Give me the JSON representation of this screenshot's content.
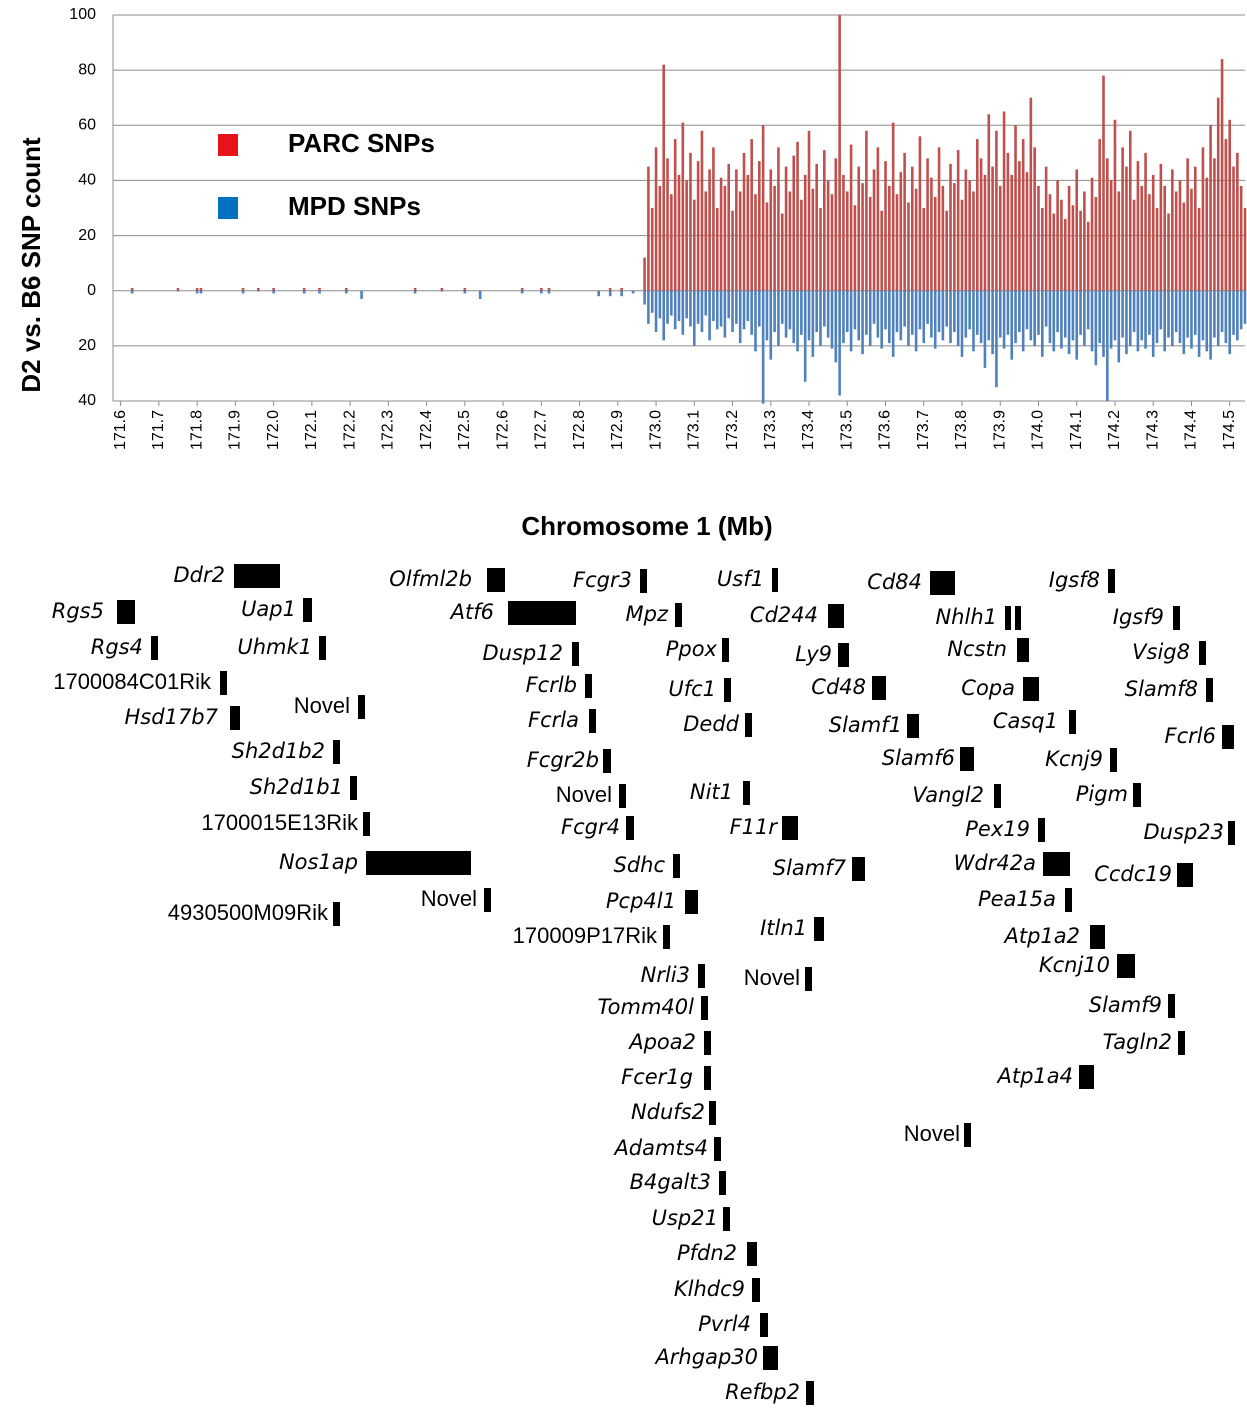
{
  "chart_data": {
    "type": "bar",
    "y_label": "D2 vs. B6 SNP count",
    "x_label": "Chromosome 1 (Mb)",
    "xlim": [
      171.58,
      174.54
    ],
    "xticks": [
      171.6,
      171.7,
      171.8,
      171.9,
      {
        "value": 172,
        "label": "172.0"
      },
      172.1,
      172.2,
      172.3,
      172.4,
      172.5,
      172.6,
      172.7,
      172.8,
      172.9,
      {
        "value": 173,
        "label": "173.0"
      },
      173.1,
      173.2,
      173.3,
      173.4,
      173.5,
      173.6,
      173.7,
      173.8,
      173.9,
      {
        "value": 174,
        "label": "174.0"
      },
      174.1,
      174.2,
      174.3,
      174.4,
      174.5
    ],
    "ylim": [
      -40,
      100
    ],
    "yticks": [
      {
        "value": -40,
        "label": "40"
      },
      {
        "value": -20,
        "label": "20"
      },
      0,
      20,
      40,
      60,
      80,
      100
    ],
    "grid": true,
    "legend": "upper left",
    "x": [
      171.63,
      171.75,
      171.8,
      171.81,
      171.92,
      171.96,
      172.0,
      172.08,
      172.12,
      172.19,
      172.23,
      172.37,
      172.44,
      172.5,
      172.54,
      172.65,
      172.7,
      172.72,
      172.85,
      172.88,
      172.91,
      172.94,
      172.97,
      172.98,
      172.99,
      173.0,
      173.01,
      173.02,
      173.03,
      173.04,
      173.05,
      173.06,
      173.07,
      173.08,
      173.09,
      173.1,
      173.11,
      173.12,
      173.13,
      173.14,
      173.15,
      173.16,
      173.17,
      173.18,
      173.19,
      173.2,
      173.21,
      173.22,
      173.23,
      173.24,
      173.25,
      173.26,
      173.27,
      173.28,
      173.29,
      173.3,
      173.31,
      173.32,
      173.33,
      173.34,
      173.35,
      173.36,
      173.37,
      173.38,
      173.39,
      173.4,
      173.41,
      173.42,
      173.43,
      173.44,
      173.45,
      173.46,
      173.47,
      173.48,
      173.49,
      173.5,
      173.51,
      173.52,
      173.53,
      173.54,
      173.55,
      173.56,
      173.57,
      173.58,
      173.59,
      173.6,
      173.61,
      173.62,
      173.63,
      173.64,
      173.65,
      173.66,
      173.67,
      173.68,
      173.69,
      173.7,
      173.71,
      173.72,
      173.73,
      173.74,
      173.75,
      173.76,
      173.77,
      173.78,
      173.79,
      173.8,
      173.81,
      173.82,
      173.83,
      173.84,
      173.85,
      173.86,
      173.87,
      173.88,
      173.89,
      173.9,
      173.91,
      173.92,
      173.93,
      173.94,
      173.95,
      173.96,
      173.97,
      173.98,
      173.99,
      174.0,
      174.01,
      174.02,
      174.03,
      174.04,
      174.05,
      174.06,
      174.07,
      174.08,
      174.09,
      174.1,
      174.11,
      174.12,
      174.13,
      174.14,
      174.15,
      174.16,
      174.17,
      174.18,
      174.19,
      174.2,
      174.21,
      174.22,
      174.23,
      174.24,
      174.25,
      174.26,
      174.27,
      174.28,
      174.29,
      174.3,
      174.31,
      174.32,
      174.33,
      174.34,
      174.35,
      174.36,
      174.37,
      174.38,
      174.39,
      174.4,
      174.41,
      174.42,
      174.43,
      174.44,
      174.45,
      174.46,
      174.47,
      174.48,
      174.49,
      174.5,
      174.51,
      174.52,
      174.53,
      174.54
    ],
    "series": [
      {
        "name": "PARC SNPs",
        "color": "#c0504d",
        "legend_color": "#e8141b",
        "values": [
          1,
          1,
          1,
          1,
          1,
          1,
          1,
          1,
          1,
          1,
          0,
          1,
          1,
          1,
          0,
          1,
          1,
          1,
          0,
          1,
          1,
          0,
          12,
          45,
          30,
          52,
          38,
          82,
          48,
          35,
          55,
          42,
          61,
          40,
          50,
          33,
          47,
          58,
          36,
          44,
          52,
          30,
          41,
          38,
          46,
          29,
          44,
          36,
          50,
          42,
          55,
          35,
          47,
          60,
          32,
          44,
          38,
          52,
          28,
          45,
          36,
          49,
          54,
          33,
          42,
          58,
          37,
          46,
          30,
          51,
          40,
          35,
          48,
          100,
          42,
          36,
          53,
          31,
          45,
          39,
          58,
          34,
          44,
          52,
          29,
          47,
          38,
          61,
          35,
          43,
          50,
          32,
          45,
          37,
          56,
          30,
          48,
          41,
          34,
          52,
          38,
          29,
          46,
          39,
          51,
          33,
          44,
          40,
          36,
          55,
          48,
          42,
          64,
          45,
          58,
          38,
          65,
          50,
          42,
          60,
          47,
          55,
          43,
          70,
          52,
          38,
          30,
          45,
          35,
          28,
          40,
          33,
          26,
          38,
          31,
          44,
          29,
          36,
          25,
          41,
          34,
          55,
          78,
          48,
          40,
          62,
          36,
          52,
          45,
          58,
          33,
          47,
          38,
          50,
          35,
          42,
          30,
          46,
          38,
          28,
          44,
          36,
          40,
          32,
          48,
          37,
          45,
          30,
          52,
          41,
          60,
          48,
          70,
          84,
          55,
          62,
          45,
          50,
          38,
          30
        ]
      },
      {
        "name": "MPD SNPs",
        "color": "#4f81bd",
        "legend_color": "#0070c0",
        "values": [
          -1,
          0,
          -1,
          -1,
          -1,
          0,
          -1,
          -1,
          -1,
          -1,
          -3,
          -1,
          0,
          -1,
          -3,
          -1,
          -1,
          -1,
          -2,
          -2,
          -2,
          -1,
          -5,
          -12,
          -8,
          -15,
          -10,
          -18,
          -12,
          -9,
          -14,
          -11,
          -16,
          -10,
          -13,
          -20,
          -12,
          -15,
          -9,
          -18,
          -11,
          -14,
          -13,
          -17,
          -10,
          -15,
          -12,
          -19,
          -14,
          -11,
          -16,
          -22,
          -13,
          -41,
          -18,
          -25,
          -15,
          -20,
          -12,
          -17,
          -14,
          -19,
          -22,
          -16,
          -33,
          -18,
          -24,
          -15,
          -20,
          -13,
          -17,
          -21,
          -26,
          -38,
          -19,
          -15,
          -22,
          -14,
          -18,
          -23,
          -16,
          -20,
          -12,
          -17,
          -21,
          -14,
          -19,
          -24,
          -15,
          -18,
          -13,
          -20,
          -16,
          -22,
          -14,
          -19,
          -12,
          -17,
          -21,
          -15,
          -18,
          -13,
          -19,
          -15,
          -20,
          -24,
          -17,
          -14,
          -22,
          -16,
          -19,
          -28,
          -18,
          -23,
          -35,
          -17,
          -21,
          -16,
          -25,
          -19,
          -15,
          -22,
          -14,
          -18,
          -20,
          -16,
          -24,
          -13,
          -19,
          -22,
          -15,
          -21,
          -17,
          -23,
          -18,
          -25,
          -16,
          -20,
          -14,
          -22,
          -27,
          -19,
          -24,
          -40,
          -21,
          -18,
          -26,
          -17,
          -23,
          -20,
          -15,
          -22,
          -18,
          -21,
          -16,
          -24,
          -19,
          -14,
          -22,
          -17,
          -20,
          -15,
          -19,
          -23,
          -17,
          -21,
          -16,
          -24,
          -18,
          -22,
          -25,
          -17,
          -20,
          -15,
          -19,
          -23,
          -16,
          -18,
          -14,
          -12
        ]
      }
    ]
  },
  "genes": [
    "Ddr2",
    "Rgs5",
    "Uap1",
    "Olfml2b",
    "Atf6",
    "Fcgr3",
    "Mpz",
    "Usf1",
    "Cd244",
    "Cd84",
    "Nhlh1",
    "Igsf8",
    "Igsf9",
    "Rgs4",
    "Uhmk1",
    "Dusp12",
    "Ppox",
    "Ly9",
    "Ncstn",
    "Vsig8",
    "1700084C01Rik",
    "Novel",
    "Fcrlb",
    "Ufc1",
    "Cd48",
    "Copa",
    "Slamf8",
    "Hsd17b7",
    "Fcrla",
    "Dedd",
    "Slamf1",
    "Casq1",
    "Fcrl6",
    "Sh2d1b2",
    "Fcgr2b",
    "Slamf6",
    "Kcnj9",
    "Sh2d1b1",
    "Novel",
    "Nit1",
    "Vangl2",
    "Pigm",
    "1700015E13Rik",
    "Fcgr4",
    "F11r",
    "Pex19",
    "Dusp23",
    "Nos1ap",
    "Sdhc",
    "Slamf7",
    "Wdr42a",
    "Ccdc19",
    "Novel",
    "Pcp4l1",
    "Pea15a",
    "4930500M09Rik",
    "Itln1",
    "Atp1a2",
    "170009P17Rik",
    "Kcnj10",
    "Nrli3",
    "Novel",
    "Tomm40l",
    "Slamf9",
    "Apoa2",
    "Tagln2",
    "Fcer1g",
    "Atp1a4",
    "Ndufs2",
    "Novel",
    "Adamts4",
    "B4galt3",
    "Usp21",
    "Pfdn2",
    "Klhdc9",
    "Pvrl4",
    "Arhgap30",
    "Refbp2"
  ]
}
